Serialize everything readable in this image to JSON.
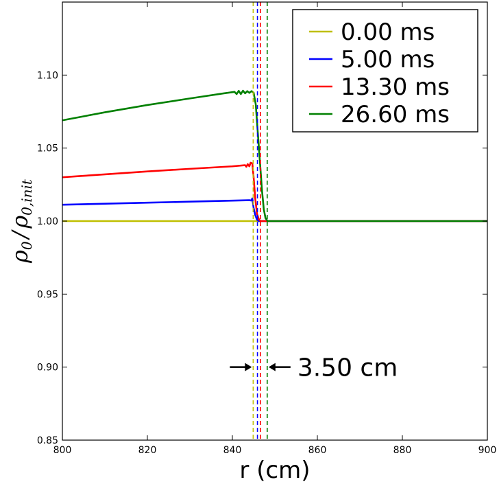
{
  "chart_data": {
    "type": "line",
    "title": "",
    "xlabel": "r (cm)",
    "ylabel_main": "ρ",
    "ylabel_main_sub": "0",
    "ylabel_slash": "/",
    "ylabel_den": "ρ",
    "ylabel_den_sub": "0,init",
    "xlim": [
      800,
      900
    ],
    "ylim": [
      0.85,
      1.15
    ],
    "xticks": [
      800,
      820,
      840,
      860,
      880,
      900
    ],
    "yticks": [
      0.85,
      0.9,
      0.95,
      1.0,
      1.05,
      1.1
    ],
    "xtick_labels": [
      "800",
      "820",
      "840",
      "860",
      "880",
      "900"
    ],
    "ytick_labels": [
      "0.85",
      "0.90",
      "0.95",
      "1.00",
      "1.05",
      "1.10"
    ],
    "grid": false,
    "legend_position": "top-right",
    "series": [
      {
        "name": "0.00 ms",
        "color": "#bfbf00",
        "x": [
          800,
          900
        ],
        "y": [
          1.0,
          1.0
        ],
        "marker_r": 844.9
      },
      {
        "name": "5.00 ms",
        "color": "#0000ff",
        "x": [
          800,
          810,
          820,
          830,
          840,
          844,
          844.4,
          844.7,
          845.0,
          845.4,
          845.8,
          846.2,
          846.6,
          847.0,
          900
        ],
        "y": [
          1.0112,
          1.0119,
          1.0126,
          1.0133,
          1.014,
          1.0143,
          1.0141,
          1.0155,
          1.009,
          1.004,
          1.001,
          1.0,
          1.0,
          1.0,
          1.0
        ],
        "marker_r": 845.9
      },
      {
        "name": "13.30 ms",
        "color": "#ff0000",
        "x": [
          800,
          810,
          820,
          830,
          840,
          843.0,
          843.3,
          843.6,
          844.0,
          844.3,
          844.7,
          845.0,
          845.4,
          845.8,
          846.2,
          846.6,
          847.2,
          900
        ],
        "y": [
          1.03,
          1.032,
          1.034,
          1.0358,
          1.0375,
          1.0383,
          1.0372,
          1.039,
          1.0375,
          1.04,
          1.0395,
          1.03,
          1.015,
          1.005,
          1.0015,
          1.0,
          1.0,
          1.0
        ],
        "marker_r": 846.6
      },
      {
        "name": "26.60 ms",
        "color": "#008000",
        "x": [
          800,
          810,
          820,
          830,
          838,
          840.5,
          841.0,
          841.5,
          842.0,
          842.5,
          843.0,
          843.5,
          844.0,
          844.5,
          845.0,
          845.5,
          846.0,
          846.5,
          847.0,
          847.4,
          847.8,
          848.3,
          900
        ],
        "y": [
          1.069,
          1.0745,
          1.0795,
          1.084,
          1.0875,
          1.0885,
          1.087,
          1.0892,
          1.087,
          1.0893,
          1.0875,
          1.089,
          1.0878,
          1.089,
          1.088,
          1.08,
          1.06,
          1.04,
          1.02,
          1.008,
          1.002,
          1.0,
          1.0
        ],
        "marker_r": 848.2
      }
    ],
    "annotation": {
      "text": "3.50 cm",
      "y": 0.9
    }
  }
}
